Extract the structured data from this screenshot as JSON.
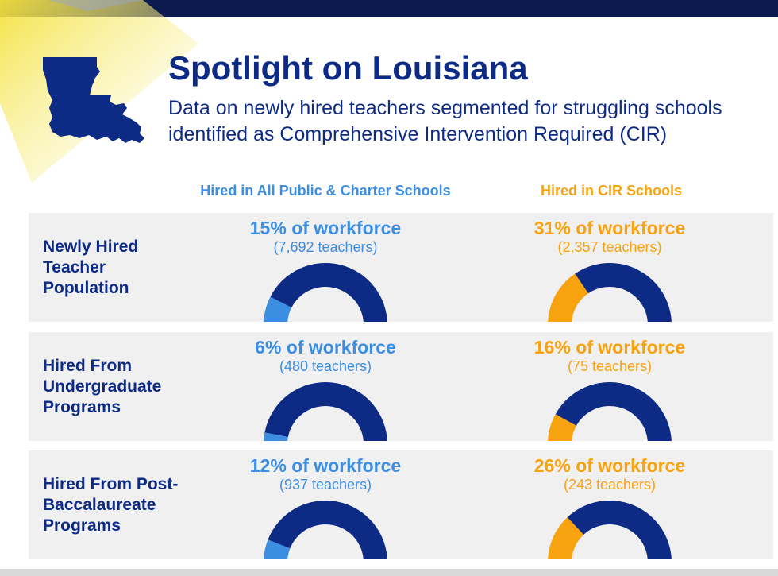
{
  "header": {
    "title": "Spotlight on Louisiana",
    "subtitle": "Data on newly hired teachers segmented for struggling schools identified as Comprehensive Intervention Required (CIR)"
  },
  "columns": {
    "all": "Hired in All Public & Charter Schools",
    "cir": "Hired in CIR Schools"
  },
  "colors": {
    "navy": "#0d2a85",
    "all_accent": "#3c8ee3",
    "cir_accent": "#f7a20f",
    "panel": "#f0f0f0"
  },
  "rows": [
    {
      "label": "Newly Hired\nTeacher\nPopulation",
      "all": {
        "pct_text": "15% of workforce",
        "count_text": "(7,692 teachers)"
      },
      "cir": {
        "pct_text": "31% of workforce",
        "count_text": "(2,357 teachers)"
      }
    },
    {
      "label": "Hired From\nUndergraduate\nPrograms",
      "all": {
        "pct_text": "6% of workforce",
        "count_text": "(480 teachers)"
      },
      "cir": {
        "pct_text": "16% of workforce",
        "count_text": "(75 teachers)"
      }
    },
    {
      "label": "Hired From Post-\nBaccalaureate\nPrograms",
      "all": {
        "pct_text": "12% of workforce",
        "count_text": "(937 teachers)"
      },
      "cir": {
        "pct_text": "26% of workforce",
        "count_text": "(243 teachers)"
      }
    }
  ],
  "chart_data": {
    "type": "pie",
    "style": "semicircle-gauge",
    "series": [
      {
        "name": "Hired in All Public & Charter Schools",
        "values": [
          15,
          6,
          12
        ]
      },
      {
        "name": "Hired in CIR Schools",
        "values": [
          31,
          16,
          26
        ]
      }
    ],
    "categories": [
      "Newly Hired Teacher Population",
      "Hired From Undergraduate Programs",
      "Hired From Post-Baccalaureate Programs"
    ],
    "teacher_counts": {
      "all": [
        7692,
        480,
        937
      ],
      "cir": [
        2357,
        75,
        243
      ]
    },
    "unit": "% of workforce",
    "ylim": [
      0,
      100
    ]
  }
}
